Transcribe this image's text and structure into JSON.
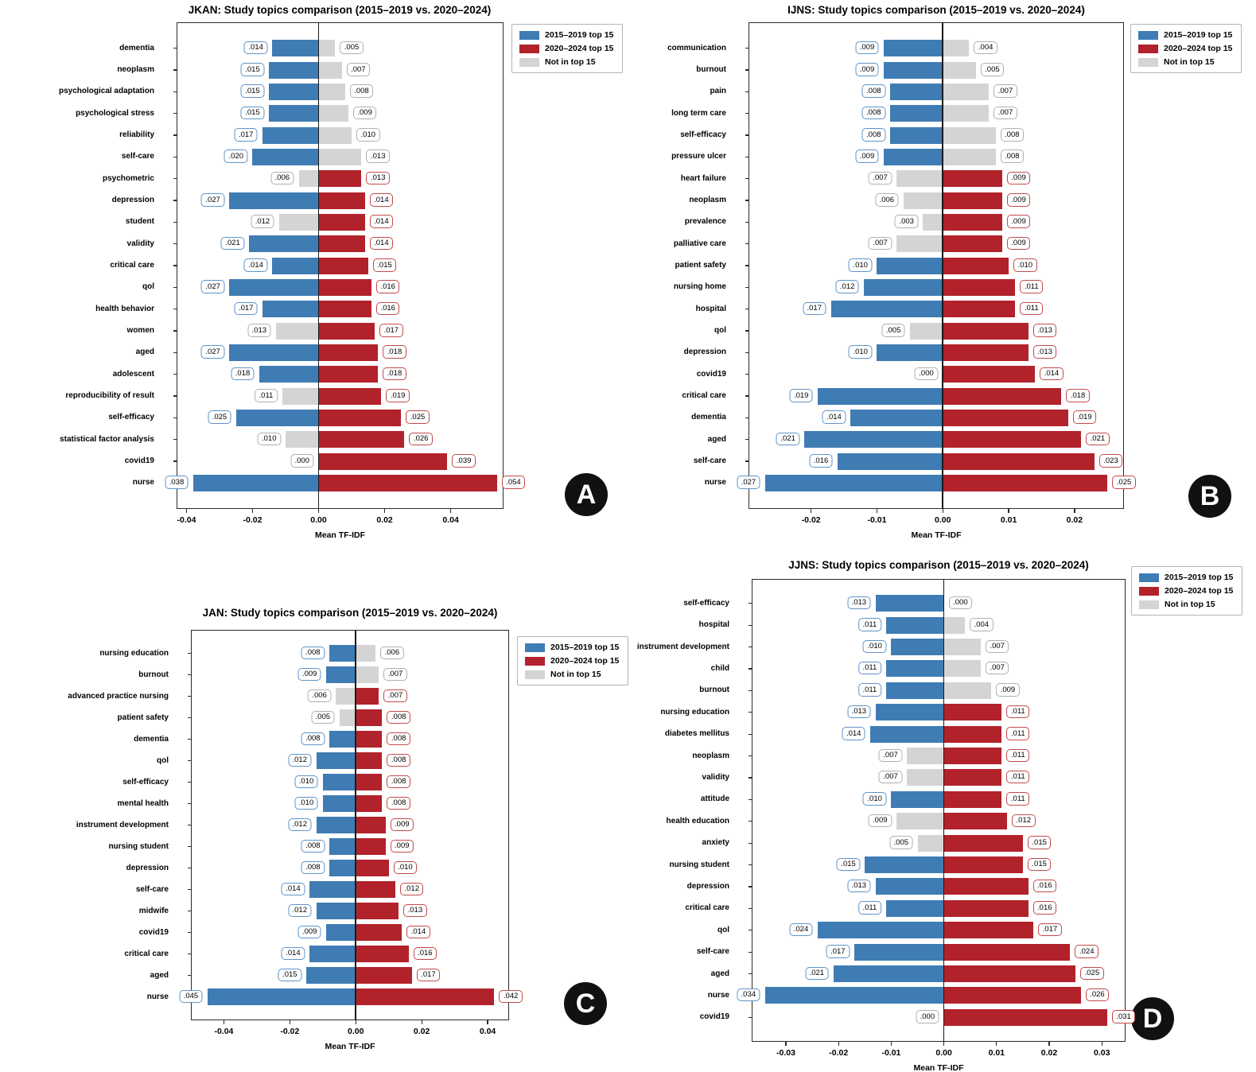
{
  "xlabel": "Mean TF-IDF",
  "legend": {
    "items": [
      {
        "label": "2015–2019 top 15",
        "key": "blue"
      },
      {
        "label": "2020–2024 top 15",
        "key": "red"
      },
      {
        "label": "Not in top 15",
        "key": "gray"
      }
    ]
  },
  "colors": {
    "bar_blue": "#3f7cb4",
    "bar_red": "#b2222a",
    "bar_gray": "#d4d4d4",
    "border_blue": "#5f94c8",
    "border_red": "#c44a4a",
    "border_gray": "#b0b0b0",
    "axis": "#2b2b2b",
    "text": "#111111"
  },
  "chart_data": [
    {
      "id": "A",
      "journal": "JKAN",
      "type": "diverging_bar",
      "title": "JKAN: Study topics comparison (2015–2019 vs. 2020–2024)",
      "xlabel": "Mean TF-IDF",
      "xticks": [
        -0.04,
        -0.02,
        0.0,
        0.02,
        0.04
      ],
      "xlim": [
        -0.043,
        0.056
      ],
      "series_note": "v1 = mean TF-IDF 2015–2019 (left, blue if in top 15), v2 = mean TF-IDF 2020–2024 (right, red if in top 15)",
      "rows": [
        {
          "topic": "dementia",
          "v1": 0.014,
          "top1": true,
          "v2": 0.005,
          "top2": false
        },
        {
          "topic": "neoplasm",
          "v1": 0.015,
          "top1": true,
          "v2": 0.007,
          "top2": false
        },
        {
          "topic": "psychological adaptation",
          "v1": 0.015,
          "top1": true,
          "v2": 0.008,
          "top2": false
        },
        {
          "topic": "psychological stress",
          "v1": 0.015,
          "top1": true,
          "v2": 0.009,
          "top2": false
        },
        {
          "topic": "reliability",
          "v1": 0.017,
          "top1": true,
          "v2": 0.01,
          "top2": false
        },
        {
          "topic": "self-care",
          "v1": 0.02,
          "top1": true,
          "v2": 0.013,
          "top2": false
        },
        {
          "topic": "psychometric",
          "v1": 0.006,
          "top1": false,
          "v2": 0.013,
          "top2": true
        },
        {
          "topic": "depression",
          "v1": 0.027,
          "top1": true,
          "v2": 0.014,
          "top2": true
        },
        {
          "topic": "student",
          "v1": 0.012,
          "top1": false,
          "v2": 0.014,
          "top2": true
        },
        {
          "topic": "validity",
          "v1": 0.021,
          "top1": true,
          "v2": 0.014,
          "top2": true
        },
        {
          "topic": "critical care",
          "v1": 0.014,
          "top1": true,
          "v2": 0.015,
          "top2": true
        },
        {
          "topic": "qol",
          "v1": 0.027,
          "top1": true,
          "v2": 0.016,
          "top2": true
        },
        {
          "topic": "health behavior",
          "v1": 0.017,
          "top1": true,
          "v2": 0.016,
          "top2": true
        },
        {
          "topic": "women",
          "v1": 0.013,
          "top1": false,
          "v2": 0.017,
          "top2": true
        },
        {
          "topic": "aged",
          "v1": 0.027,
          "top1": true,
          "v2": 0.018,
          "top2": true
        },
        {
          "topic": "adolescent",
          "v1": 0.018,
          "top1": true,
          "v2": 0.018,
          "top2": true
        },
        {
          "topic": "reproducibility of result",
          "v1": 0.011,
          "top1": false,
          "v2": 0.019,
          "top2": true
        },
        {
          "topic": "self-efficacy",
          "v1": 0.025,
          "top1": true,
          "v2": 0.025,
          "top2": true
        },
        {
          "topic": "statistical factor analysis",
          "v1": 0.01,
          "top1": false,
          "v2": 0.026,
          "top2": true
        },
        {
          "topic": "covid19",
          "v1": 0.0,
          "top1": false,
          "v2": 0.039,
          "top2": true
        },
        {
          "topic": "nurse",
          "v1": 0.038,
          "top1": true,
          "v2": 0.054,
          "top2": true
        }
      ]
    },
    {
      "id": "B",
      "journal": "IJNS",
      "type": "diverging_bar",
      "title": "IJNS: Study topics comparison (2015–2019 vs. 2020–2024)",
      "xlabel": "Mean TF-IDF",
      "xticks": [
        -0.02,
        -0.01,
        0.0,
        0.01,
        0.02
      ],
      "xlim": [
        -0.0295,
        0.0275
      ],
      "series_note": "v1 = mean TF-IDF 2015–2019 (left, blue if in top 15), v2 = mean TF-IDF 2020–2024 (right, red if in top 15)",
      "rows": [
        {
          "topic": "communication",
          "v1": 0.009,
          "top1": true,
          "v2": 0.004,
          "top2": false
        },
        {
          "topic": "burnout",
          "v1": 0.009,
          "top1": true,
          "v2": 0.005,
          "top2": false
        },
        {
          "topic": "pain",
          "v1": 0.008,
          "top1": true,
          "v2": 0.007,
          "top2": false
        },
        {
          "topic": "long term care",
          "v1": 0.008,
          "top1": true,
          "v2": 0.007,
          "top2": false
        },
        {
          "topic": "self-efficacy",
          "v1": 0.008,
          "top1": true,
          "v2": 0.008,
          "top2": false
        },
        {
          "topic": "pressure ulcer",
          "v1": 0.009,
          "top1": true,
          "v2": 0.008,
          "top2": false
        },
        {
          "topic": "heart failure",
          "v1": 0.007,
          "top1": false,
          "v2": 0.009,
          "top2": true
        },
        {
          "topic": "neoplasm",
          "v1": 0.006,
          "top1": false,
          "v2": 0.009,
          "top2": true
        },
        {
          "topic": "prevalence",
          "v1": 0.003,
          "top1": false,
          "v2": 0.009,
          "top2": true
        },
        {
          "topic": "palliative care",
          "v1": 0.007,
          "top1": false,
          "v2": 0.009,
          "top2": true
        },
        {
          "topic": "patient safety",
          "v1": 0.01,
          "top1": true,
          "v2": 0.01,
          "top2": true
        },
        {
          "topic": "nursing home",
          "v1": 0.012,
          "top1": true,
          "v2": 0.011,
          "top2": true
        },
        {
          "topic": "hospital",
          "v1": 0.017,
          "top1": true,
          "v2": 0.011,
          "top2": true
        },
        {
          "topic": "qol",
          "v1": 0.005,
          "top1": false,
          "v2": 0.013,
          "top2": true
        },
        {
          "topic": "depression",
          "v1": 0.01,
          "top1": true,
          "v2": 0.013,
          "top2": true
        },
        {
          "topic": "covid19",
          "v1": 0.0,
          "top1": false,
          "v2": 0.014,
          "top2": true
        },
        {
          "topic": "critical care",
          "v1": 0.019,
          "top1": true,
          "v2": 0.018,
          "top2": true
        },
        {
          "topic": "dementia",
          "v1": 0.014,
          "top1": true,
          "v2": 0.019,
          "top2": true
        },
        {
          "topic": "aged",
          "v1": 0.021,
          "top1": true,
          "v2": 0.021,
          "top2": true
        },
        {
          "topic": "self-care",
          "v1": 0.016,
          "top1": true,
          "v2": 0.023,
          "top2": true
        },
        {
          "topic": "nurse",
          "v1": 0.027,
          "top1": true,
          "v2": 0.025,
          "top2": true
        }
      ]
    },
    {
      "id": "C",
      "journal": "JAN",
      "type": "diverging_bar",
      "title": "JAN: Study topics comparison (2015–2019 vs. 2020–2024)",
      "xlabel": "Mean TF-IDF",
      "xticks": [
        -0.04,
        -0.02,
        0.0,
        0.02,
        0.04
      ],
      "xlim": [
        -0.05,
        0.0465
      ],
      "series_note": "v1 = mean TF-IDF 2015–2019 (left, blue if in top 15), v2 = mean TF-IDF 2020–2024 (right, red if in top 15)",
      "rows": [
        {
          "topic": "nursing education",
          "v1": 0.008,
          "top1": true,
          "v2": 0.006,
          "top2": false
        },
        {
          "topic": "burnout",
          "v1": 0.009,
          "top1": true,
          "v2": 0.007,
          "top2": false
        },
        {
          "topic": "advanced practice nursing",
          "v1": 0.006,
          "top1": false,
          "v2": 0.007,
          "top2": true
        },
        {
          "topic": "patient safety",
          "v1": 0.005,
          "top1": false,
          "v2": 0.008,
          "top2": true
        },
        {
          "topic": "dementia",
          "v1": 0.008,
          "top1": true,
          "v2": 0.008,
          "top2": true
        },
        {
          "topic": "qol",
          "v1": 0.012,
          "top1": true,
          "v2": 0.008,
          "top2": true
        },
        {
          "topic": "self-efficacy",
          "v1": 0.01,
          "top1": true,
          "v2": 0.008,
          "top2": true
        },
        {
          "topic": "mental health",
          "v1": 0.01,
          "top1": true,
          "v2": 0.008,
          "top2": true
        },
        {
          "topic": "instrument development",
          "v1": 0.012,
          "top1": true,
          "v2": 0.009,
          "top2": true
        },
        {
          "topic": "nursing student",
          "v1": 0.008,
          "top1": true,
          "v2": 0.009,
          "top2": true
        },
        {
          "topic": "depression",
          "v1": 0.008,
          "top1": true,
          "v2": 0.01,
          "top2": true
        },
        {
          "topic": "self-care",
          "v1": 0.014,
          "top1": true,
          "v2": 0.012,
          "top2": true
        },
        {
          "topic": "midwife",
          "v1": 0.012,
          "top1": true,
          "v2": 0.013,
          "top2": true
        },
        {
          "topic": "covid19",
          "v1": 0.009,
          "top1": true,
          "v2": 0.014,
          "top2": true
        },
        {
          "topic": "critical care",
          "v1": 0.014,
          "top1": true,
          "v2": 0.016,
          "top2": true
        },
        {
          "topic": "aged",
          "v1": 0.015,
          "top1": true,
          "v2": 0.017,
          "top2": true
        },
        {
          "topic": "nurse",
          "v1": 0.045,
          "top1": true,
          "v2": 0.042,
          "top2": true
        }
      ]
    },
    {
      "id": "D",
      "journal": "JJNS",
      "type": "diverging_bar",
      "title": "JJNS: Study topics comparison (2015–2019 vs. 2020–2024)",
      "xlabel": "Mean TF-IDF",
      "xticks": [
        -0.03,
        -0.02,
        -0.01,
        0.0,
        0.01,
        0.02,
        0.03
      ],
      "xlim": [
        -0.0365,
        0.0345
      ],
      "series_note": "v1 = mean TF-IDF 2015–2019 (left, blue if in top 15), v2 = mean TF-IDF 2020–2024 (right, red if in top 15)",
      "rows": [
        {
          "topic": "self-efficacy",
          "v1": 0.013,
          "top1": true,
          "v2": 0.0,
          "top2": false
        },
        {
          "topic": "hospital",
          "v1": 0.011,
          "top1": true,
          "v2": 0.004,
          "top2": false
        },
        {
          "topic": "instrument development",
          "v1": 0.01,
          "top1": true,
          "v2": 0.007,
          "top2": false
        },
        {
          "topic": "child",
          "v1": 0.011,
          "top1": true,
          "v2": 0.007,
          "top2": false
        },
        {
          "topic": "burnout",
          "v1": 0.011,
          "top1": true,
          "v2": 0.009,
          "top2": false
        },
        {
          "topic": "nursing education",
          "v1": 0.013,
          "top1": true,
          "v2": 0.011,
          "top2": true
        },
        {
          "topic": "diabetes mellitus",
          "v1": 0.014,
          "top1": true,
          "v2": 0.011,
          "top2": true
        },
        {
          "topic": "neoplasm",
          "v1": 0.007,
          "top1": false,
          "v2": 0.011,
          "top2": true
        },
        {
          "topic": "validity",
          "v1": 0.007,
          "top1": false,
          "v2": 0.011,
          "top2": true
        },
        {
          "topic": "attitude",
          "v1": 0.01,
          "top1": true,
          "v2": 0.011,
          "top2": true
        },
        {
          "topic": "health education",
          "v1": 0.009,
          "top1": false,
          "v2": 0.012,
          "top2": true
        },
        {
          "topic": "anxiety",
          "v1": 0.005,
          "top1": false,
          "v2": 0.015,
          "top2": true
        },
        {
          "topic": "nursing student",
          "v1": 0.015,
          "top1": true,
          "v2": 0.015,
          "top2": true
        },
        {
          "topic": "depression",
          "v1": 0.013,
          "top1": true,
          "v2": 0.016,
          "top2": true
        },
        {
          "topic": "critical care",
          "v1": 0.011,
          "top1": true,
          "v2": 0.016,
          "top2": true
        },
        {
          "topic": "qol",
          "v1": 0.024,
          "top1": true,
          "v2": 0.017,
          "top2": true
        },
        {
          "topic": "self-care",
          "v1": 0.017,
          "top1": true,
          "v2": 0.024,
          "top2": true
        },
        {
          "topic": "aged",
          "v1": 0.021,
          "top1": true,
          "v2": 0.025,
          "top2": true
        },
        {
          "topic": "nurse",
          "v1": 0.034,
          "top1": true,
          "v2": 0.026,
          "top2": true
        },
        {
          "topic": "covid19",
          "v1": 0.0,
          "top1": false,
          "v2": 0.031,
          "top2": true
        }
      ]
    }
  ]
}
